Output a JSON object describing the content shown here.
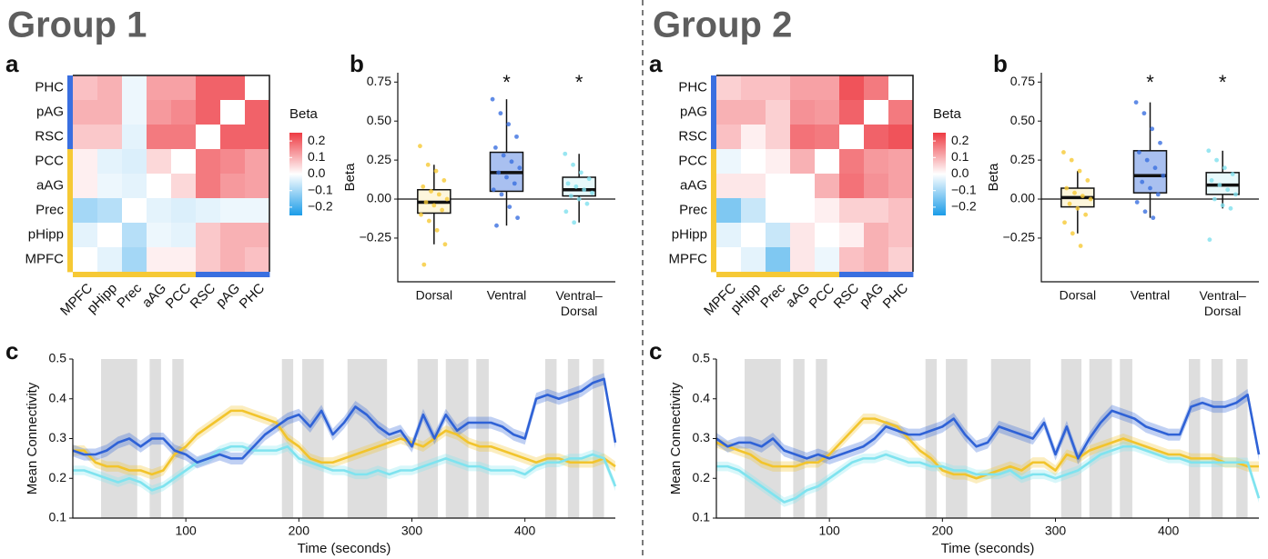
{
  "groups": [
    "Group 1",
    "Group 2"
  ],
  "chart_data": [
    {
      "type": "heatmap",
      "panel": "a",
      "rows": [
        "PHC",
        "pAG",
        "RSC",
        "PCC",
        "aAG",
        "Prec",
        "pHipp",
        "MPFC"
      ],
      "columns": [
        "MPFC",
        "pHipp",
        "Prec",
        "aAG",
        "PCC",
        "RSC",
        "pAG",
        "PHC"
      ],
      "row_colors": [
        "#2d5be3",
        "#d62828",
        "#5cc92e",
        "#4dd8e8",
        "#f08c6a",
        "#f5c518",
        "#7a20d0",
        "#888888"
      ],
      "column_colors": [
        "#888888",
        "#7a20d0",
        "#f5c518",
        "#f08c6a",
        "#4dd8e8",
        "#5cc92e",
        "#d62828",
        "#2d5be3"
      ],
      "row_strip_colors": [
        "#3a6fe0",
        "#3a6fe0",
        "#3a6fe0",
        "#f6c935",
        "#f6c935",
        "#f6c935",
        "#f6c935",
        "#f6c935"
      ],
      "column_strip_colors": [
        "#f6c935",
        "#f6c935",
        "#f6c935",
        "#f6c935",
        "#f6c935",
        "#3a6fe0",
        "#3a6fe0",
        "#3a6fe0"
      ],
      "values": [
        [
          0.08,
          0.1,
          -0.02,
          0.12,
          0.12,
          0.2,
          0.2,
          null
        ],
        [
          0.1,
          0.1,
          -0.02,
          0.13,
          0.15,
          0.2,
          null,
          0.2
        ],
        [
          0.07,
          0.07,
          -0.03,
          0.17,
          0.17,
          null,
          0.2,
          0.2
        ],
        [
          0.02,
          -0.03,
          -0.04,
          0.05,
          null,
          0.17,
          0.15,
          0.12
        ],
        [
          0.02,
          -0.02,
          -0.03,
          null,
          0.05,
          0.17,
          0.13,
          0.12
        ],
        [
          -0.1,
          -0.08,
          null,
          -0.03,
          -0.04,
          -0.03,
          -0.02,
          -0.02
        ],
        [
          -0.03,
          null,
          -0.08,
          -0.02,
          -0.03,
          0.07,
          0.1,
          0.1
        ],
        [
          null,
          -0.03,
          -0.1,
          0.02,
          0.02,
          0.07,
          0.1,
          0.08
        ]
      ],
      "clim": [
        -0.25,
        0.25
      ],
      "colormap": [
        "#1b9ce8",
        "#ffffff",
        "#ee3b43"
      ],
      "colorbar_title": "Beta",
      "colorbar_ticks": [
        0.2,
        0.1,
        {
          "value": 0,
          "label": "0.0"
        },
        {
          "value": -0.1,
          "label": "−0.1"
        },
        {
          "value": -0.2,
          "label": "−0.2"
        }
      ]
    },
    {
      "type": "box",
      "panel": "b",
      "ylabel": "Beta",
      "categories": [
        "Dorsal",
        "Ventral",
        "Ventral–Dorsal"
      ],
      "colors": [
        "#f6c935",
        "#3a6fe0",
        "#7fe0ee"
      ],
      "box_fills": [
        "#fdf6dc",
        "#a9c0f0",
        "#e8f9fb"
      ],
      "boxes": [
        {
          "whislo": -0.29,
          "q1": -0.09,
          "med": -0.02,
          "q3": 0.06,
          "whishi": 0.22,
          "points": [
            0.34,
            0.22,
            0.18,
            0.12,
            0.08,
            0.05,
            0.03,
            0.0,
            -0.02,
            -0.04,
            -0.07,
            -0.1,
            -0.14,
            -0.2,
            -0.29,
            -0.42
          ]
        },
        {
          "whislo": -0.17,
          "q1": 0.05,
          "med": 0.17,
          "q3": 0.3,
          "whishi": 0.64,
          "points": [
            0.64,
            0.55,
            0.48,
            0.4,
            0.33,
            0.28,
            0.24,
            0.2,
            0.17,
            0.14,
            0.1,
            0.06,
            0.03,
            -0.05,
            -0.12,
            -0.17
          ]
        },
        {
          "whislo": -0.15,
          "q1": 0.02,
          "med": 0.06,
          "q3": 0.14,
          "whishi": 0.29,
          "points": [
            0.29,
            0.22,
            0.17,
            0.13,
            0.1,
            0.08,
            0.06,
            0.04,
            0.02,
            0.0,
            -0.03,
            -0.08,
            -0.15
          ]
        }
      ],
      "ylim": [
        -0.53,
        0.81
      ],
      "yticks": [
        {
          "value": -0.25,
          "label": "−0.25"
        },
        {
          "value": 0,
          "label": "0.00"
        },
        0.25,
        {
          "value": 0.5,
          "label": "0.50"
        },
        0.75
      ],
      "hline": 0,
      "annotations": [
        {
          "category": "Ventral",
          "text": "*"
        },
        {
          "category": "Ventral–Dorsal",
          "text": "*"
        }
      ]
    },
    {
      "type": "line",
      "panel": "c",
      "xlabel": "Time (seconds)",
      "ylabel": "Mean Connectivity",
      "x": [
        0,
        10,
        20,
        30,
        40,
        50,
        60,
        70,
        80,
        90,
        100,
        110,
        120,
        130,
        140,
        150,
        160,
        170,
        180,
        190,
        200,
        210,
        220,
        230,
        240,
        250,
        260,
        270,
        280,
        290,
        300,
        310,
        320,
        330,
        340,
        350,
        360,
        370,
        380,
        390,
        400,
        410,
        420,
        430,
        440,
        450,
        460,
        470,
        480
      ],
      "series": [
        {
          "color": "#f2c42c",
          "error": 0.013,
          "values": [
            0.27,
            0.27,
            0.24,
            0.23,
            0.23,
            0.22,
            0.22,
            0.21,
            0.22,
            0.26,
            0.28,
            0.31,
            0.33,
            0.35,
            0.37,
            0.37,
            0.36,
            0.35,
            0.34,
            0.3,
            0.28,
            0.25,
            0.24,
            0.24,
            0.25,
            0.26,
            0.27,
            0.28,
            0.29,
            0.3,
            0.29,
            0.28,
            0.3,
            0.32,
            0.31,
            0.29,
            0.28,
            0.28,
            0.27,
            0.26,
            0.25,
            0.24,
            0.25,
            0.25,
            0.24,
            0.24,
            0.24,
            0.25,
            0.23
          ]
        },
        {
          "color": "#7fe3ef",
          "error": 0.012,
          "values": [
            0.22,
            0.22,
            0.21,
            0.2,
            0.19,
            0.2,
            0.19,
            0.17,
            0.18,
            0.2,
            0.22,
            0.24,
            0.25,
            0.27,
            0.28,
            0.28,
            0.27,
            0.27,
            0.27,
            0.28,
            0.25,
            0.24,
            0.23,
            0.22,
            0.22,
            0.21,
            0.21,
            0.22,
            0.21,
            0.22,
            0.22,
            0.23,
            0.24,
            0.25,
            0.24,
            0.23,
            0.23,
            0.22,
            0.22,
            0.22,
            0.21,
            0.23,
            0.24,
            0.24,
            0.25,
            0.25,
            0.26,
            0.25,
            0.18
          ]
        },
        {
          "color": "#2f62d6",
          "error": 0.015,
          "values": [
            0.27,
            0.26,
            0.26,
            0.27,
            0.29,
            0.3,
            0.28,
            0.3,
            0.3,
            0.27,
            0.26,
            0.24,
            0.25,
            0.26,
            0.25,
            0.25,
            0.28,
            0.31,
            0.33,
            0.35,
            0.36,
            0.33,
            0.37,
            0.31,
            0.34,
            0.38,
            0.36,
            0.33,
            0.31,
            0.32,
            0.28,
            0.36,
            0.3,
            0.36,
            0.32,
            0.34,
            0.34,
            0.34,
            0.33,
            0.31,
            0.3,
            0.4,
            0.41,
            0.4,
            0.41,
            0.42,
            0.44,
            0.45,
            0.29
          ]
        }
      ],
      "shaded_intervals": [
        [
          25,
          57
        ],
        [
          68,
          78
        ],
        [
          88,
          98
        ],
        [
          185,
          195
        ],
        [
          203,
          222
        ],
        [
          243,
          278
        ],
        [
          305,
          323
        ],
        [
          330,
          350
        ],
        [
          357,
          368
        ],
        [
          418,
          428
        ],
        [
          438,
          448
        ],
        [
          460,
          470
        ]
      ],
      "shade_color": "#dedede",
      "xlim": [
        0,
        480
      ],
      "ylim": [
        0.1,
        0.5
      ],
      "xticks": [
        100,
        200,
        300,
        400
      ],
      "yticks": [
        0.1,
        0.2,
        0.3,
        0.4,
        0.5
      ]
    },
    {
      "type": "heatmap",
      "panel": "a",
      "rows": [
        "PHC",
        "pAG",
        "RSC",
        "PCC",
        "aAG",
        "Prec",
        "pHipp",
        "MPFC"
      ],
      "columns": [
        "MPFC",
        "pHipp",
        "Prec",
        "aAG",
        "PCC",
        "RSC",
        "pAG",
        "PHC"
      ],
      "row_colors": [
        "#2d5be3",
        "#d62828",
        "#5cc92e",
        "#4dd8e8",
        "#f08c6a",
        "#f5c518",
        "#7a20d0",
        "#888888"
      ],
      "column_colors": [
        "#888888",
        "#7a20d0",
        "#f5c518",
        "#f08c6a",
        "#4dd8e8",
        "#5cc92e",
        "#d62828",
        "#2d5be3"
      ],
      "row_strip_colors": [
        "#3a6fe0",
        "#3a6fe0",
        "#3a6fe0",
        "#f6c935",
        "#f6c935",
        "#f6c935",
        "#f6c935",
        "#f6c935"
      ],
      "column_strip_colors": [
        "#f6c935",
        "#f6c935",
        "#f6c935",
        "#f6c935",
        "#f6c935",
        "#3a6fe0",
        "#3a6fe0",
        "#3a6fe0"
      ],
      "values": [
        [
          0.06,
          0.08,
          0.08,
          0.12,
          0.12,
          0.22,
          0.17,
          null
        ],
        [
          0.1,
          0.1,
          0.06,
          0.14,
          0.13,
          0.2,
          null,
          0.17
        ],
        [
          0.08,
          0.02,
          0.06,
          0.18,
          0.17,
          null,
          0.2,
          0.22
        ],
        [
          -0.02,
          0.0,
          0.02,
          0.1,
          null,
          0.17,
          0.13,
          0.12
        ],
        [
          0.03,
          0.03,
          0.0,
          null,
          0.1,
          0.18,
          0.14,
          0.12
        ],
        [
          -0.14,
          -0.06,
          null,
          0.0,
          0.02,
          0.06,
          0.06,
          0.08
        ],
        [
          -0.03,
          null,
          -0.06,
          0.03,
          0.0,
          0.02,
          0.1,
          0.08
        ],
        [
          null,
          -0.03,
          -0.14,
          0.03,
          -0.02,
          0.08,
          0.1,
          0.06
        ]
      ],
      "clim": [
        -0.25,
        0.25
      ],
      "colormap": [
        "#1b9ce8",
        "#ffffff",
        "#ee3b43"
      ],
      "colorbar_title": "Beta",
      "colorbar_ticks": [
        0.2,
        0.1,
        {
          "value": 0,
          "label": "0.0"
        },
        {
          "value": -0.1,
          "label": "−0.1"
        },
        {
          "value": -0.2,
          "label": "−0.2"
        }
      ]
    },
    {
      "type": "box",
      "panel": "b",
      "ylabel": "Beta",
      "categories": [
        "Dorsal",
        "Ventral",
        "Ventral–Dorsal"
      ],
      "colors": [
        "#f6c935",
        "#3a6fe0",
        "#7fe0ee"
      ],
      "box_fills": [
        "#fdf6dc",
        "#a9c0f0",
        "#e8f9fb"
      ],
      "boxes": [
        {
          "whislo": -0.22,
          "q1": -0.05,
          "med": 0.01,
          "q3": 0.07,
          "whishi": 0.18,
          "points": [
            0.3,
            0.25,
            0.18,
            0.12,
            0.07,
            0.04,
            0.02,
            0.0,
            -0.03,
            -0.06,
            -0.1,
            -0.15,
            -0.22,
            -0.3
          ]
        },
        {
          "whislo": -0.12,
          "q1": 0.04,
          "med": 0.15,
          "q3": 0.31,
          "whishi": 0.62,
          "points": [
            0.62,
            0.55,
            0.45,
            0.36,
            0.3,
            0.25,
            0.2,
            0.15,
            0.11,
            0.07,
            0.03,
            -0.02,
            -0.08,
            -0.12
          ]
        },
        {
          "whislo": -0.06,
          "q1": 0.03,
          "med": 0.09,
          "q3": 0.17,
          "whishi": 0.31,
          "points": [
            0.31,
            0.25,
            0.2,
            0.16,
            0.12,
            0.09,
            0.06,
            0.03,
            0.0,
            -0.04,
            -0.06,
            -0.26
          ]
        }
      ],
      "ylim": [
        -0.53,
        0.81
      ],
      "yticks": [
        {
          "value": -0.25,
          "label": "−0.25"
        },
        {
          "value": 0,
          "label": "0.00"
        },
        0.25,
        {
          "value": 0.5,
          "label": "0.50"
        },
        0.75
      ],
      "hline": 0,
      "annotations": [
        {
          "category": "Ventral",
          "text": "*"
        },
        {
          "category": "Ventral–Dorsal",
          "text": "*"
        }
      ]
    },
    {
      "type": "line",
      "panel": "c",
      "xlabel": "Time (seconds)",
      "ylabel": "Mean Connectivity",
      "x": [
        0,
        10,
        20,
        30,
        40,
        50,
        60,
        70,
        80,
        90,
        100,
        110,
        120,
        130,
        140,
        150,
        160,
        170,
        180,
        190,
        200,
        210,
        220,
        230,
        240,
        250,
        260,
        270,
        280,
        290,
        300,
        310,
        320,
        330,
        340,
        350,
        360,
        370,
        380,
        390,
        400,
        410,
        420,
        430,
        440,
        450,
        460,
        470,
        480
      ],
      "series": [
        {
          "color": "#f2c42c",
          "error": 0.013,
          "values": [
            0.29,
            0.28,
            0.27,
            0.26,
            0.24,
            0.23,
            0.23,
            0.23,
            0.24,
            0.24,
            0.26,
            0.29,
            0.32,
            0.35,
            0.35,
            0.34,
            0.33,
            0.3,
            0.27,
            0.25,
            0.22,
            0.21,
            0.21,
            0.2,
            0.21,
            0.22,
            0.23,
            0.22,
            0.24,
            0.24,
            0.22,
            0.26,
            0.25,
            0.27,
            0.28,
            0.29,
            0.3,
            0.29,
            0.28,
            0.27,
            0.26,
            0.26,
            0.25,
            0.25,
            0.25,
            0.24,
            0.24,
            0.23,
            0.23
          ]
        },
        {
          "color": "#7fe3ef",
          "error": 0.012,
          "values": [
            0.23,
            0.23,
            0.22,
            0.2,
            0.18,
            0.16,
            0.14,
            0.15,
            0.17,
            0.18,
            0.2,
            0.22,
            0.24,
            0.25,
            0.25,
            0.26,
            0.25,
            0.24,
            0.24,
            0.23,
            0.23,
            0.22,
            0.22,
            0.21,
            0.21,
            0.21,
            0.22,
            0.2,
            0.21,
            0.21,
            0.2,
            0.21,
            0.22,
            0.24,
            0.26,
            0.27,
            0.28,
            0.28,
            0.27,
            0.26,
            0.25,
            0.25,
            0.24,
            0.24,
            0.24,
            0.24,
            0.24,
            0.24,
            0.15
          ]
        },
        {
          "color": "#2f62d6",
          "error": 0.015,
          "values": [
            0.3,
            0.28,
            0.29,
            0.29,
            0.28,
            0.3,
            0.27,
            0.26,
            0.25,
            0.26,
            0.25,
            0.26,
            0.27,
            0.28,
            0.3,
            0.33,
            0.32,
            0.31,
            0.31,
            0.32,
            0.33,
            0.35,
            0.31,
            0.28,
            0.29,
            0.33,
            0.32,
            0.31,
            0.3,
            0.34,
            0.26,
            0.33,
            0.25,
            0.3,
            0.34,
            0.37,
            0.36,
            0.35,
            0.33,
            0.32,
            0.31,
            0.31,
            0.38,
            0.39,
            0.38,
            0.38,
            0.39,
            0.41,
            0.26
          ]
        }
      ],
      "shaded_intervals": [
        [
          25,
          57
        ],
        [
          68,
          78
        ],
        [
          88,
          98
        ],
        [
          185,
          195
        ],
        [
          203,
          222
        ],
        [
          243,
          278
        ],
        [
          305,
          323
        ],
        [
          330,
          350
        ],
        [
          357,
          368
        ],
        [
          418,
          428
        ],
        [
          438,
          448
        ],
        [
          460,
          470
        ]
      ],
      "shade_color": "#dedede",
      "xlim": [
        0,
        480
      ],
      "ylim": [
        0.1,
        0.5
      ],
      "xticks": [
        100,
        200,
        300,
        400
      ],
      "yticks": [
        0.1,
        0.2,
        0.3,
        0.4,
        0.5
      ]
    }
  ]
}
